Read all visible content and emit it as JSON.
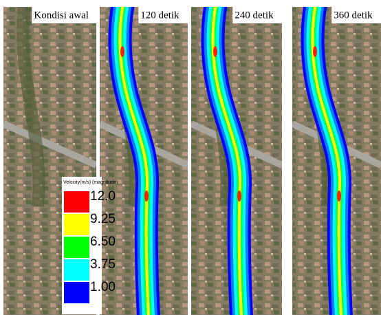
{
  "panels": [
    {
      "label": "Kondisi awal",
      "river": false
    },
    {
      "label": "120 detik",
      "river": true
    },
    {
      "label": "240 detik",
      "river": true
    },
    {
      "label": "360 detik",
      "river": true
    }
  ],
  "legend": {
    "title": "Velocity(m/s) (magnitude)",
    "items": [
      {
        "label": "12.0",
        "color": "#ff0000"
      },
      {
        "label": "9.25",
        "color": "#ffff00"
      },
      {
        "label": "6.50",
        "color": "#00ff00"
      },
      {
        "label": "3.75",
        "color": "#00ffff"
      },
      {
        "label": "1.00",
        "color": "#0000ff"
      }
    ]
  }
}
